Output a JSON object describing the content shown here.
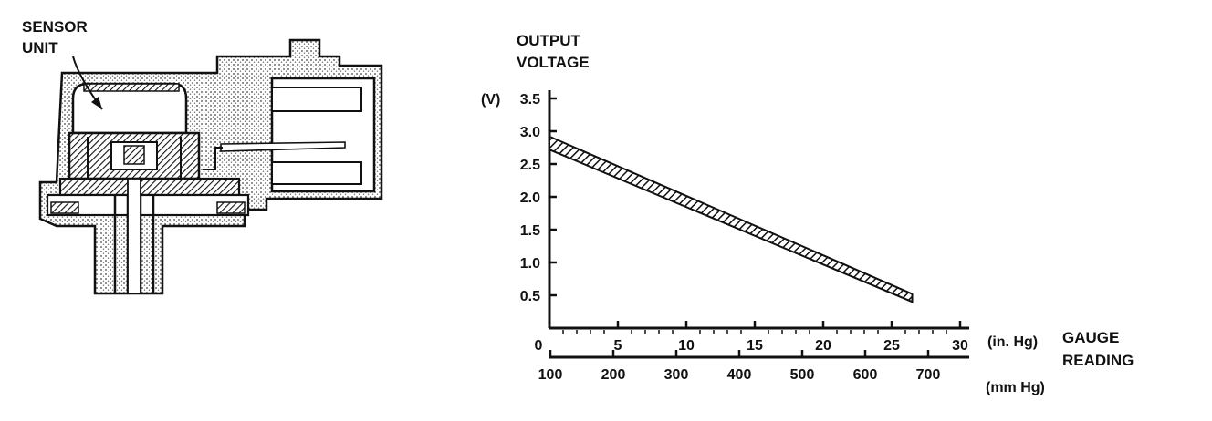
{
  "diagram": {
    "callout": {
      "line1": "SENSOR",
      "line2": "UNIT"
    }
  },
  "chart_data": {
    "type": "line",
    "ylabel_line1": "OUTPUT",
    "ylabel_line2": "VOLTAGE",
    "yunit": "(V)",
    "ylim": [
      0,
      3.5
    ],
    "yticks": [
      "0.5",
      "1.0",
      "1.5",
      "2.0",
      "2.5",
      "3.0",
      "3.5"
    ],
    "x_primary": {
      "unit": "(in. Hg)",
      "range": [
        0,
        30
      ],
      "ticks": [
        "0",
        "5",
        "10",
        "15",
        "20",
        "25",
        "30"
      ]
    },
    "x_secondary": {
      "unit": "(mm Hg)",
      "ticks": [
        "100",
        "200",
        "300",
        "400",
        "500",
        "600",
        "700"
      ]
    },
    "xlabel_line1": "GAUGE",
    "xlabel_line2": "READING",
    "series": [
      {
        "style": "hatched-band",
        "x": [
          0,
          26.5
        ],
        "y_upper": [
          2.92,
          0.52
        ],
        "y_lower": [
          2.72,
          0.4
        ]
      }
    ]
  }
}
